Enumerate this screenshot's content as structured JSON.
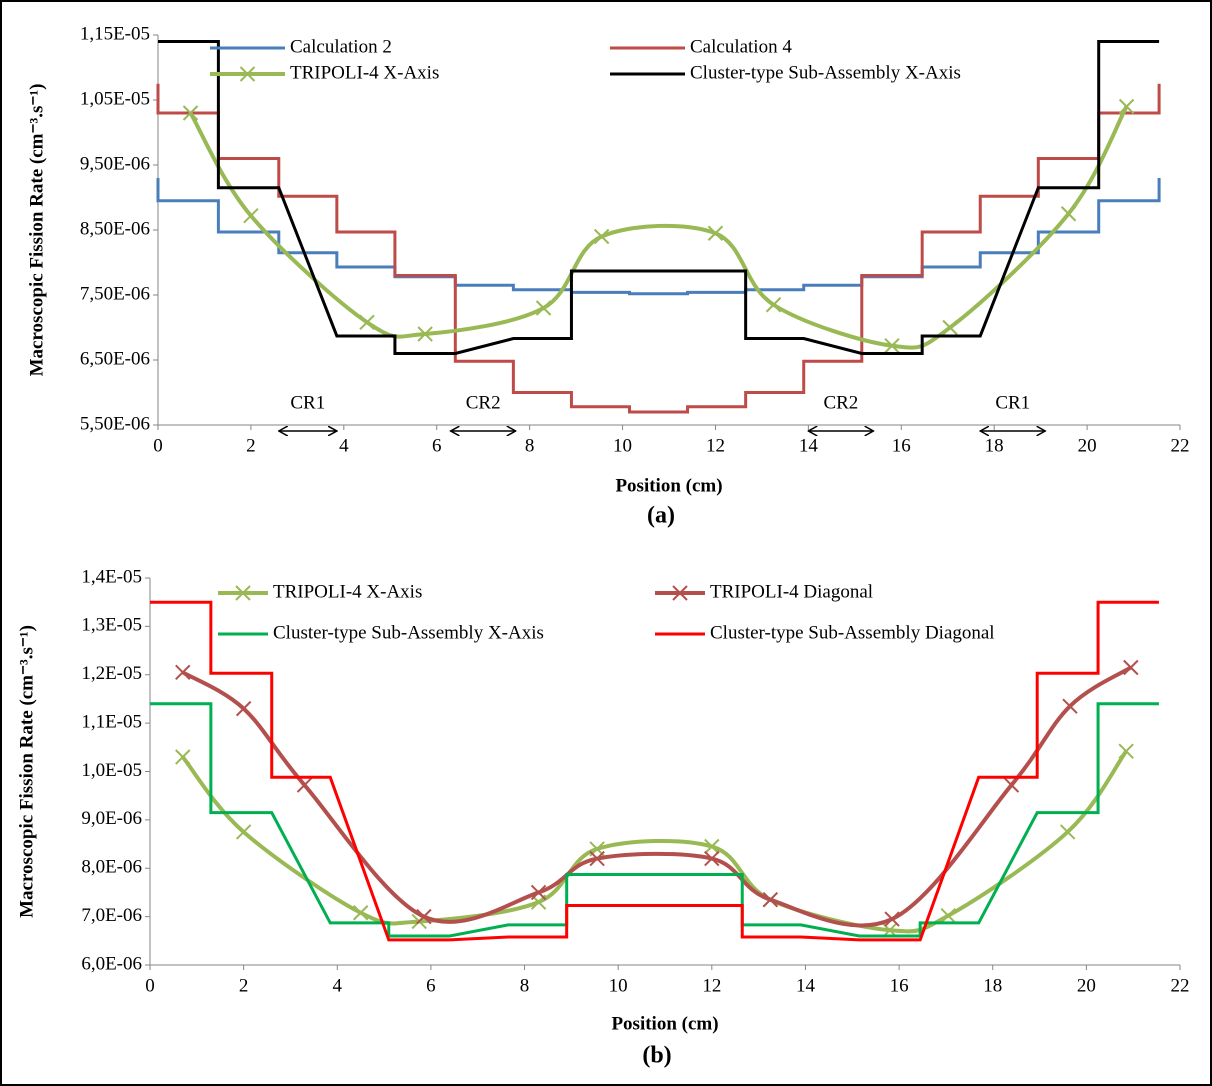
{
  "chart_data": [
    {
      "type": "line",
      "caption": "(a)",
      "x_label": "Position (cm)",
      "y_label": "Macroscopic Fission Rate (cm⁻³.s⁻¹)",
      "xlim": [
        0,
        22
      ],
      "xticks": [
        0,
        2,
        4,
        6,
        8,
        10,
        12,
        14,
        16,
        18,
        20,
        22
      ],
      "ylim": [
        5.5e-06,
        1.15e-05
      ],
      "yticks": [
        {
          "value": 5.5e-06,
          "label": "5,50E-06"
        },
        {
          "value": 6.5e-06,
          "label": "6,50E-06"
        },
        {
          "value": 7.5e-06,
          "label": "7,50E-06"
        },
        {
          "value": 8.5e-06,
          "label": "8,50E-06"
        },
        {
          "value": 9.5e-06,
          "label": "9,50E-06"
        },
        {
          "value": 1.05e-05,
          "label": "1,05E-05"
        },
        {
          "value": 1.15e-05,
          "label": "1,15E-05"
        }
      ],
      "annotations": [
        "CR1",
        "CR2",
        "CR2",
        "CR1"
      ],
      "series": [
        {
          "name": "Calculation 2",
          "color": "#4a7ebb",
          "smooth": false,
          "marker": "none",
          "x": [
            0,
            0,
            1.3,
            1.3,
            2.6,
            2.6,
            3.85,
            3.85,
            5.1,
            5.1,
            6.4,
            6.4,
            7.65,
            7.65,
            8.9,
            8.9,
            10.15,
            10.15,
            11.4,
            11.4,
            12.65,
            12.65,
            13.9,
            13.9,
            15.15,
            15.15,
            16.45,
            16.45,
            17.7,
            17.7,
            18.95,
            18.95,
            20.25,
            20.25,
            21.55,
            21.55
          ],
          "values": [
            9.3e-06,
            8.95e-06,
            8.95e-06,
            8.47e-06,
            8.47e-06,
            8.15e-06,
            8.15e-06,
            7.93e-06,
            7.93e-06,
            7.78e-06,
            7.78e-06,
            7.65e-06,
            7.65e-06,
            7.58e-06,
            7.58e-06,
            7.54e-06,
            7.54e-06,
            7.52e-06,
            7.52e-06,
            7.54e-06,
            7.54e-06,
            7.58e-06,
            7.58e-06,
            7.65e-06,
            7.65e-06,
            7.78e-06,
            7.78e-06,
            7.93e-06,
            7.93e-06,
            8.15e-06,
            8.15e-06,
            8.47e-06,
            8.47e-06,
            8.95e-06,
            8.95e-06,
            9.3e-06
          ]
        },
        {
          "name": "Calculation 4",
          "color": "#be4b48",
          "smooth": false,
          "marker": "none",
          "x": [
            0,
            0,
            1.3,
            1.3,
            2.6,
            2.6,
            3.85,
            3.85,
            5.1,
            5.1,
            6.4,
            6.4,
            7.65,
            7.65,
            8.9,
            8.9,
            10.15,
            10.15,
            11.4,
            11.4,
            12.65,
            12.65,
            13.9,
            13.9,
            15.15,
            15.15,
            16.45,
            16.45,
            17.7,
            17.7,
            18.95,
            18.95,
            20.25,
            20.25,
            21.55,
            21.55
          ],
          "values": [
            1.075e-05,
            1.03e-05,
            1.03e-05,
            9.6e-06,
            9.6e-06,
            9.02e-06,
            9.02e-06,
            8.47e-06,
            8.47e-06,
            7.8e-06,
            7.8e-06,
            6.48e-06,
            6.48e-06,
            6e-06,
            6e-06,
            5.78e-06,
            5.78e-06,
            5.7e-06,
            5.7e-06,
            5.78e-06,
            5.78e-06,
            6e-06,
            6e-06,
            6.48e-06,
            6.48e-06,
            7.8e-06,
            7.8e-06,
            8.47e-06,
            8.47e-06,
            9.02e-06,
            9.02e-06,
            9.6e-06,
            9.6e-06,
            1.03e-05,
            1.03e-05,
            1.075e-05
          ]
        },
        {
          "name": "TRIPOLI-4 X-Axis",
          "color": "#98b954",
          "smooth": true,
          "marker": "x",
          "x": [
            0.7,
            2.0,
            4.5,
            5.75,
            8.3,
            9.55,
            12.0,
            13.25,
            15.8,
            17.05,
            19.6,
            20.85
          ],
          "values": [
            1.03e-05,
            8.72e-06,
            7.08e-06,
            6.9e-06,
            7.3e-06,
            8.4e-06,
            8.45e-06,
            7.35e-06,
            6.72e-06,
            7e-06,
            8.75e-06,
            1.04e-05
          ]
        },
        {
          "name": "Cluster-type Sub-Assembly X-Axis",
          "color": "#000000",
          "smooth": false,
          "marker": "none",
          "x": [
            0,
            1.3,
            1.3,
            2.6,
            3.85,
            5.1,
            5.1,
            6.4,
            7.65,
            8.9,
            8.9,
            12.65,
            12.65,
            13.9,
            15.15,
            16.45,
            16.45,
            17.7,
            18.95,
            20.25,
            20.25,
            21.55
          ],
          "values": [
            1.14e-05,
            1.14e-05,
            9.15e-06,
            9.15e-06,
            6.87e-06,
            6.87e-06,
            6.6e-06,
            6.6e-06,
            6.83e-06,
            6.83e-06,
            7.87e-06,
            7.87e-06,
            6.83e-06,
            6.83e-06,
            6.6e-06,
            6.6e-06,
            6.87e-06,
            6.87e-06,
            9.15e-06,
            9.15e-06,
            1.14e-05,
            1.14e-05
          ]
        }
      ]
    },
    {
      "type": "line",
      "caption": "(b)",
      "x_label": "Position (cm)",
      "y_label": "Macroscopic Fission Rate (cm⁻³.s⁻¹)",
      "xlim": [
        0,
        22
      ],
      "xticks": [
        0,
        2,
        4,
        6,
        8,
        10,
        12,
        14,
        16,
        18,
        20,
        22
      ],
      "ylim": [
        6e-06,
        1.4e-05
      ],
      "yticks": [
        {
          "value": 6e-06,
          "label": "6,0E-06"
        },
        {
          "value": 7e-06,
          "label": "7,0E-06"
        },
        {
          "value": 8e-06,
          "label": "8,0E-06"
        },
        {
          "value": 9e-06,
          "label": "9,0E-06"
        },
        {
          "value": 1e-05,
          "label": "1,0E-05"
        },
        {
          "value": 1.1e-05,
          "label": "1,1E-05"
        },
        {
          "value": 1.2e-05,
          "label": "1,2E-05"
        },
        {
          "value": 1.3e-05,
          "label": "1,3E-05"
        },
        {
          "value": 1.4e-05,
          "label": "1,4E-05"
        }
      ],
      "series": [
        {
          "name": "TRIPOLI-4 X-Axis",
          "color": "#98b954",
          "smooth": true,
          "marker": "x",
          "x": [
            0.7,
            2.0,
            4.5,
            5.75,
            8.3,
            9.55,
            12.0,
            13.25,
            15.8,
            17.05,
            19.6,
            20.85
          ],
          "values": [
            1.03e-05,
            8.75e-06,
            7.08e-06,
            6.9e-06,
            7.3e-06,
            8.4e-06,
            8.45e-06,
            7.35e-06,
            6.72e-06,
            7.02e-06,
            8.75e-06,
            1.042e-05
          ]
        },
        {
          "name": "TRIPOLI-4 Diagonal",
          "color": "#b3504d",
          "smooth": true,
          "marker": "x",
          "x": [
            0.7,
            2.0,
            3.3,
            5.85,
            8.3,
            9.55,
            12.0,
            13.25,
            15.85,
            18.4,
            19.65,
            20.95
          ],
          "values": [
            1.205e-05,
            1.13e-05,
            9.72e-06,
            7e-06,
            7.5e-06,
            8.2e-06,
            8.2e-06,
            7.35e-06,
            6.95e-06,
            9.72e-06,
            1.135e-05,
            1.215e-05
          ]
        },
        {
          "name": "Cluster-type Sub-Assembly X-Axis",
          "color": "#00b050",
          "smooth": false,
          "marker": "none",
          "x": [
            0,
            1.3,
            1.3,
            2.6,
            3.85,
            5.1,
            5.1,
            6.4,
            7.65,
            8.9,
            8.9,
            12.65,
            12.65,
            13.9,
            15.15,
            16.45,
            16.45,
            17.7,
            18.95,
            20.25,
            20.25,
            21.55
          ],
          "values": [
            1.14e-05,
            1.14e-05,
            9.15e-06,
            9.15e-06,
            6.87e-06,
            6.87e-06,
            6.6e-06,
            6.6e-06,
            6.83e-06,
            6.83e-06,
            7.87e-06,
            7.87e-06,
            6.83e-06,
            6.83e-06,
            6.6e-06,
            6.6e-06,
            6.87e-06,
            6.87e-06,
            9.15e-06,
            9.15e-06,
            1.14e-05,
            1.14e-05
          ]
        },
        {
          "name": "Cluster-type Sub-Assembly Diagonal",
          "color": "#ff0000",
          "smooth": false,
          "marker": "none",
          "x": [
            0,
            1.3,
            1.3,
            2.6,
            2.6,
            3.85,
            5.1,
            6.4,
            7.65,
            8.9,
            8.9,
            12.65,
            12.65,
            13.9,
            15.15,
            16.45,
            17.7,
            18.95,
            18.95,
            20.25,
            20.25,
            21.55
          ],
          "values": [
            1.35e-05,
            1.35e-05,
            1.203e-05,
            1.203e-05,
            9.88e-06,
            9.88e-06,
            6.52e-06,
            6.52e-06,
            6.58e-06,
            6.58e-06,
            7.23e-06,
            7.23e-06,
            6.58e-06,
            6.58e-06,
            6.52e-06,
            6.52e-06,
            9.88e-06,
            9.88e-06,
            1.203e-05,
            1.203e-05,
            1.35e-05,
            1.35e-05
          ]
        }
      ]
    }
  ]
}
